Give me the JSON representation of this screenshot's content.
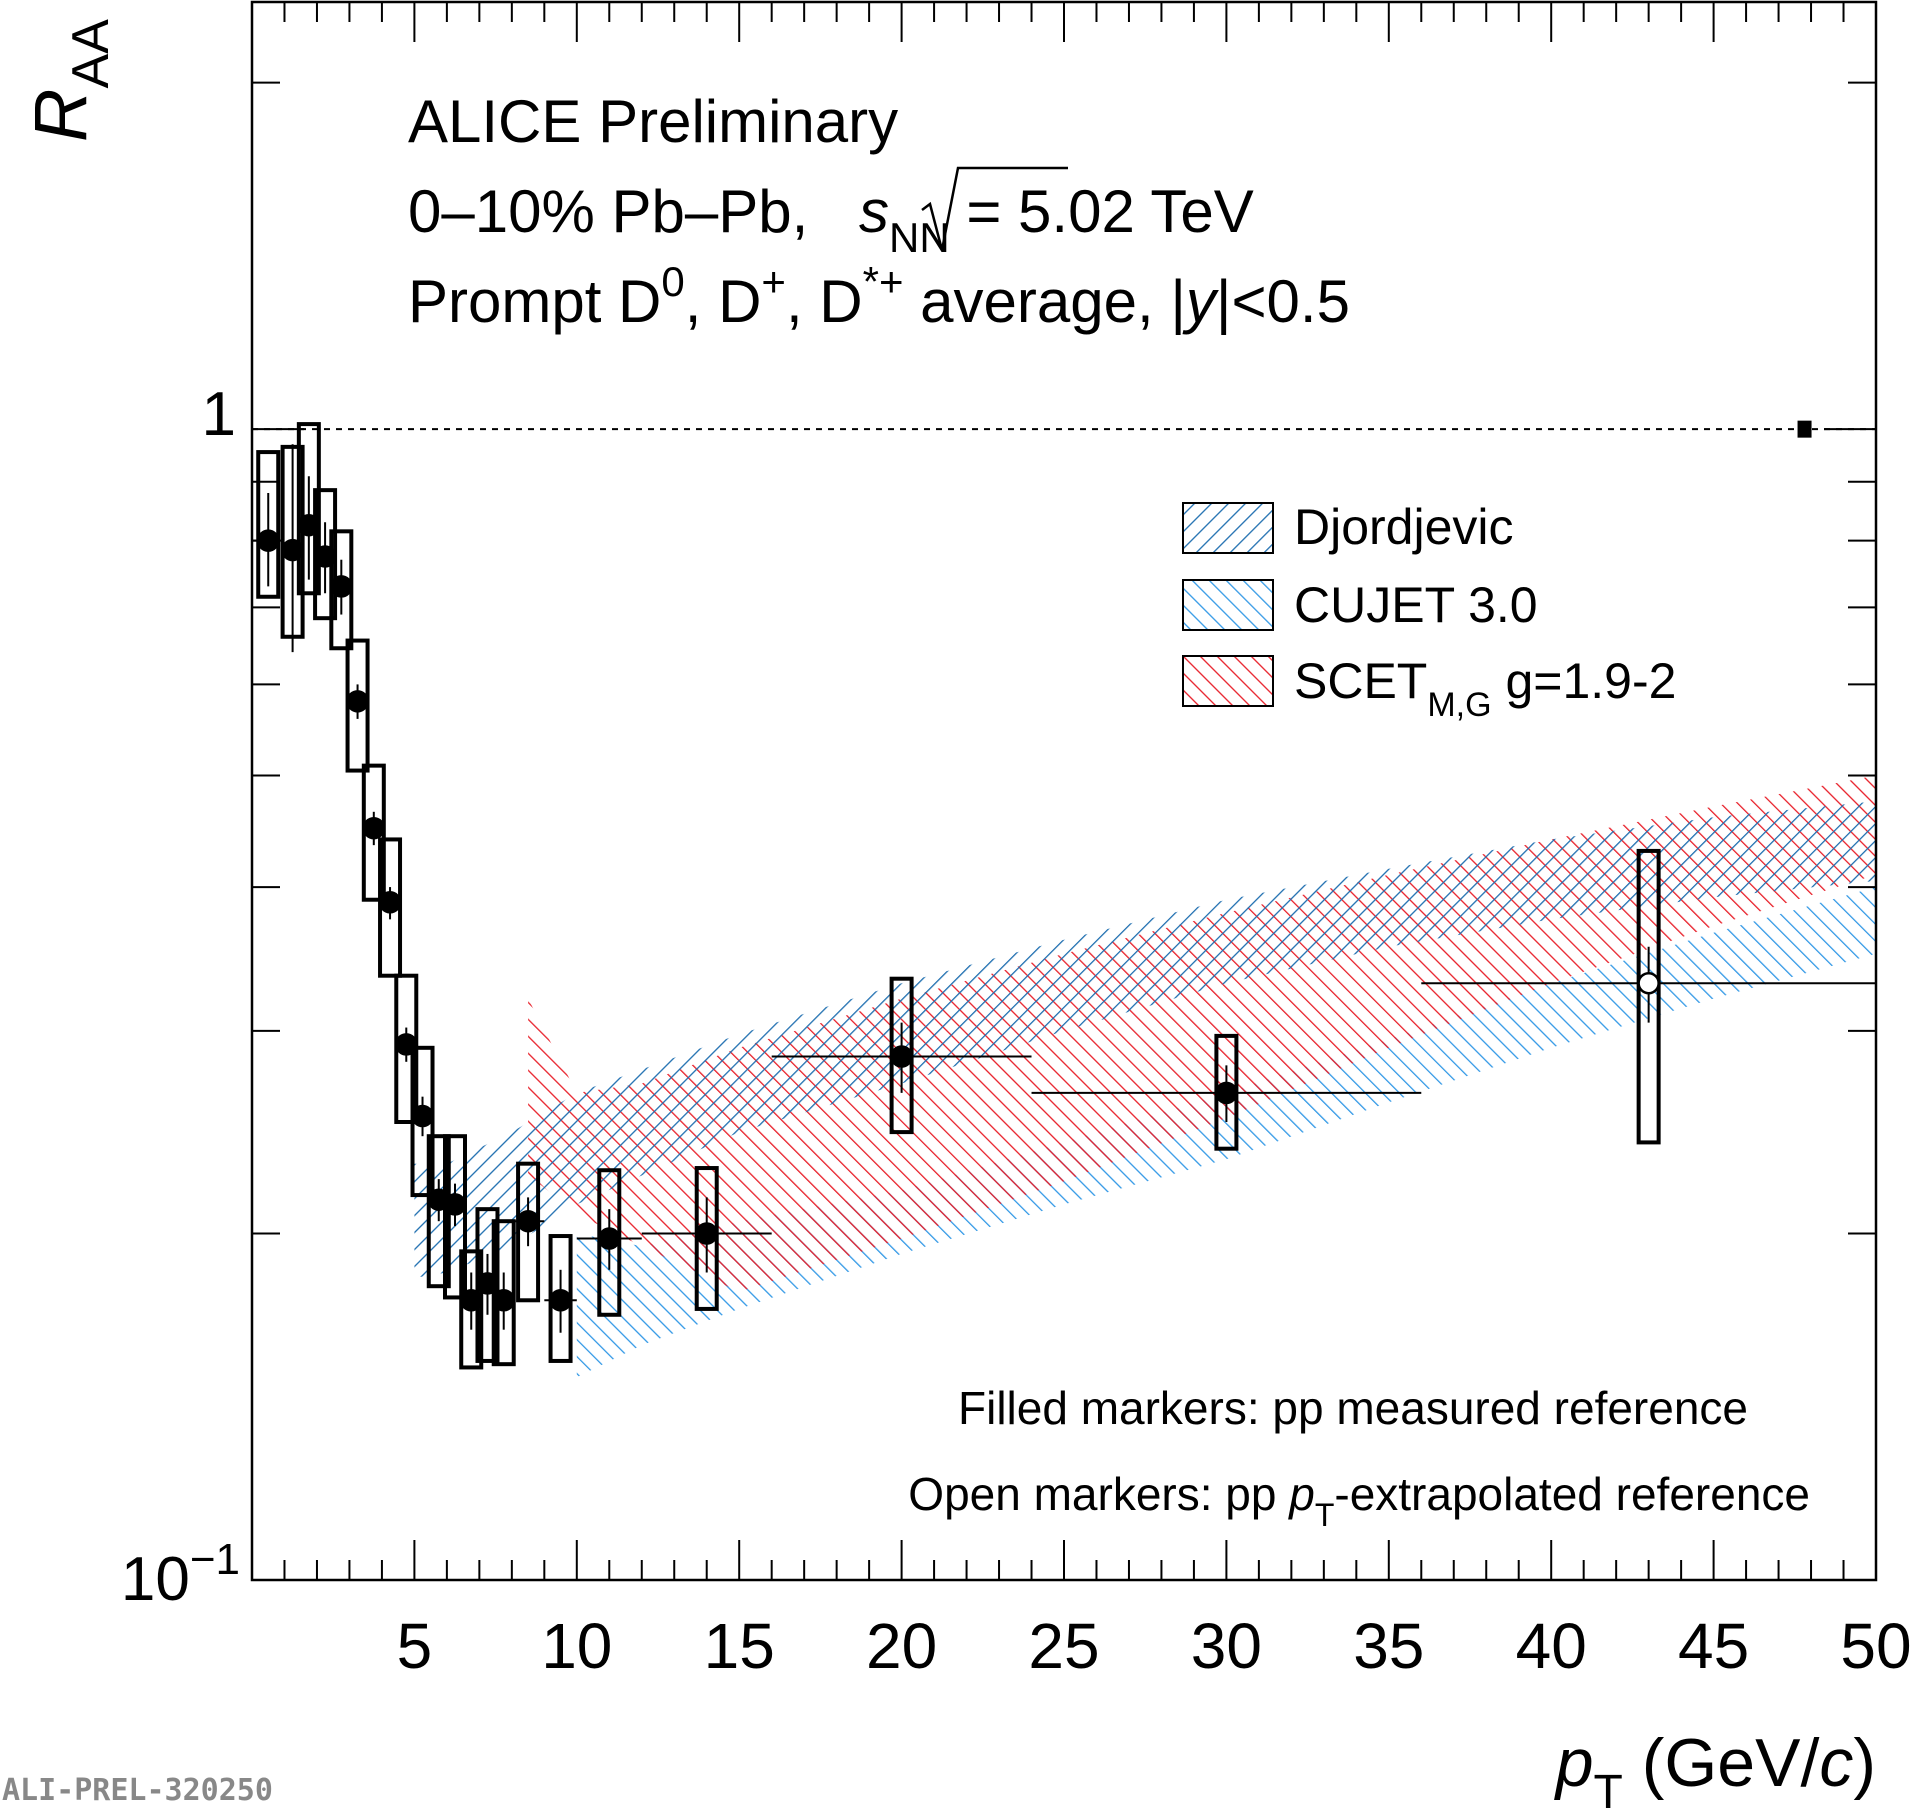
{
  "chart_data": {
    "type": "scatter",
    "title_lines": {
      "line1": "ALICE Preliminary",
      "line2_pre": "0–10%  Pb–Pb, ",
      "line2_s": "s",
      "line2_nn": "NN",
      "line2_post": " = 5.02 TeV",
      "line3_a": "Prompt D",
      "line3_sup0": "0",
      "line3_b": ", D",
      "line3_supplus": "+",
      "line3_c": ", D",
      "line3_supstar": "*+",
      "line3_d": " average, |",
      "line3_y": "y",
      "line3_e": "|<0.5"
    },
    "xlabel": {
      "p": "p",
      "sub": "T",
      "unit": " (GeV/",
      "c": "c",
      "close": ")"
    },
    "ylabel": {
      "R": "R",
      "sub": "AA"
    },
    "xlim": [
      0,
      50
    ],
    "ylim": [
      0.1,
      2.35
    ],
    "yscale": "log",
    "x_ticks": [
      "5",
      "10",
      "15",
      "20",
      "25",
      "30",
      "35",
      "40",
      "45",
      "50"
    ],
    "y_tick_one": "1",
    "y_tick_low_base": "10",
    "y_tick_low_exp": "−1",
    "reference_line": 1.0,
    "normalization_uncertainty": {
      "x": 47.8,
      "low": 0.983,
      "high": 1.017
    },
    "notes": {
      "filled": "Filled markers: pp measured reference",
      "open_pre": "Open markers: pp ",
      "open_p": "p",
      "open_sub": "T",
      "open_post": "-extrapolated reference"
    },
    "watermark": "ALI-PREL-320250",
    "legend": [
      {
        "name": "Djordjevic",
        "color": "#1f6fb0"
      },
      {
        "name": "CUJET 3.0",
        "color": "#3399e6"
      },
      {
        "name_main": "SCET",
        "name_sub": "M,G",
        "name_post": " g=1.9-2",
        "color": "#e8202a"
      }
    ],
    "data_points": [
      {
        "x": 0.5,
        "y": 0.8,
        "xerr": 0.5,
        "stat": [
          0.73,
          0.88
        ],
        "syst": [
          0.715,
          0.955
        ],
        "filled": true
      },
      {
        "x": 1.25,
        "y": 0.785,
        "xerr": 0.25,
        "stat": [
          0.64,
          0.97
        ],
        "syst": [
          0.66,
          0.965
        ],
        "filled": true
      },
      {
        "x": 1.75,
        "y": 0.825,
        "xerr": 0.25,
        "stat": [
          0.74,
          0.91
        ],
        "syst": [
          0.72,
          1.01
        ],
        "filled": true
      },
      {
        "x": 2.25,
        "y": 0.775,
        "xerr": 0.25,
        "stat": [
          0.72,
          0.83
        ],
        "syst": [
          0.685,
          0.885
        ],
        "filled": true
      },
      {
        "x": 2.75,
        "y": 0.73,
        "xerr": 0.25,
        "stat": [
          0.69,
          0.77
        ],
        "syst": [
          0.645,
          0.815
        ],
        "filled": true
      },
      {
        "x": 3.25,
        "y": 0.58,
        "xerr": 0.25,
        "stat": [
          0.56,
          0.6
        ],
        "syst": [
          0.505,
          0.655
        ],
        "filled": true
      },
      {
        "x": 3.75,
        "y": 0.45,
        "xerr": 0.25,
        "stat": [
          0.435,
          0.465
        ],
        "syst": [
          0.39,
          0.51
        ],
        "filled": true
      },
      {
        "x": 4.25,
        "y": 0.388,
        "xerr": 0.25,
        "stat": [
          0.375,
          0.4
        ],
        "syst": [
          0.335,
          0.44
        ],
        "filled": true
      },
      {
        "x": 4.75,
        "y": 0.292,
        "xerr": 0.25,
        "stat": [
          0.282,
          0.302
        ],
        "syst": [
          0.25,
          0.335
        ],
        "filled": true
      },
      {
        "x": 5.25,
        "y": 0.253,
        "xerr": 0.25,
        "stat": [
          0.243,
          0.263
        ],
        "syst": [
          0.216,
          0.29
        ],
        "filled": true
      },
      {
        "x": 5.75,
        "y": 0.214,
        "xerr": 0.25,
        "stat": [
          0.205,
          0.223
        ],
        "syst": [
          0.18,
          0.243
        ],
        "filled": true
      },
      {
        "x": 6.25,
        "y": 0.212,
        "xerr": 0.25,
        "stat": [
          0.203,
          0.221
        ],
        "syst": [
          0.176,
          0.243
        ],
        "filled": true
      },
      {
        "x": 6.75,
        "y": 0.175,
        "xerr": 0.25,
        "stat": [
          0.165,
          0.185
        ],
        "syst": [
          0.153,
          0.193
        ],
        "filled": true
      },
      {
        "x": 7.25,
        "y": 0.181,
        "xerr": 0.25,
        "stat": [
          0.17,
          0.192
        ],
        "syst": [
          0.155,
          0.21
        ],
        "filled": true
      },
      {
        "x": 7.75,
        "y": 0.175,
        "xerr": 0.25,
        "stat": [
          0.165,
          0.185
        ],
        "syst": [
          0.154,
          0.205
        ],
        "filled": true
      },
      {
        "x": 8.5,
        "y": 0.205,
        "xerr": 0.5,
        "stat": [
          0.195,
          0.215
        ],
        "syst": [
          0.175,
          0.23
        ],
        "filled": true
      },
      {
        "x": 9.5,
        "y": 0.175,
        "xerr": 0.5,
        "stat": [
          0.164,
          0.186
        ],
        "syst": [
          0.155,
          0.199
        ],
        "filled": true
      },
      {
        "x": 11.0,
        "y": 0.198,
        "xerr": 1.0,
        "stat": [
          0.186,
          0.21
        ],
        "syst": [
          0.17,
          0.227
        ],
        "filled": true
      },
      {
        "x": 14.0,
        "y": 0.2,
        "xerr": 2.0,
        "stat": [
          0.185,
          0.215
        ],
        "syst": [
          0.172,
          0.228
        ],
        "filled": true
      },
      {
        "x": 20.0,
        "y": 0.285,
        "xerr": 4.0,
        "stat": [
          0.265,
          0.305
        ],
        "syst": [
          0.245,
          0.333
        ],
        "filled": true
      },
      {
        "x": 30.0,
        "y": 0.265,
        "xerr": 6.0,
        "stat": [
          0.25,
          0.28
        ],
        "syst": [
          0.237,
          0.297
        ],
        "filled": true
      },
      {
        "x": 43.0,
        "y": 0.33,
        "xerr": 7.0,
        "stat": [
          0.305,
          0.355
        ],
        "syst": [
          0.24,
          0.43
        ],
        "filled": false
      }
    ],
    "bands": {
      "djordjevic": {
        "x": [
          5,
          6,
          8,
          10,
          15,
          20,
          25,
          30,
          35,
          40,
          45,
          50
        ],
        "low": [
          0.183,
          0.185,
          0.195,
          0.212,
          0.245,
          0.27,
          0.3,
          0.33,
          0.355,
          0.375,
          0.392,
          0.405
        ],
        "high": [
          0.23,
          0.23,
          0.245,
          0.265,
          0.298,
          0.33,
          0.36,
          0.39,
          0.415,
          0.44,
          0.46,
          0.475
        ]
      },
      "cujet": {
        "x": [
          10,
          12,
          15,
          20,
          25,
          30,
          35,
          40,
          45,
          50
        ],
        "low": [
          0.15,
          0.16,
          0.172,
          0.192,
          0.212,
          0.232,
          0.26,
          0.29,
          0.32,
          0.35
        ],
        "high": [
          0.2,
          0.195,
          0.205,
          0.218,
          0.24,
          0.265,
          0.295,
          0.33,
          0.365,
          0.4
        ]
      },
      "scet": {
        "x": [
          8.5,
          10,
          12,
          15,
          20,
          25,
          30,
          35,
          40,
          45,
          50
        ],
        "low": [
          0.225,
          0.208,
          0.195,
          0.178,
          0.198,
          0.222,
          0.252,
          0.29,
          0.33,
          0.37,
          0.41
        ],
        "high": [
          0.32,
          0.265,
          0.27,
          0.29,
          0.32,
          0.35,
          0.38,
          0.41,
          0.44,
          0.47,
          0.5
        ]
      }
    }
  }
}
